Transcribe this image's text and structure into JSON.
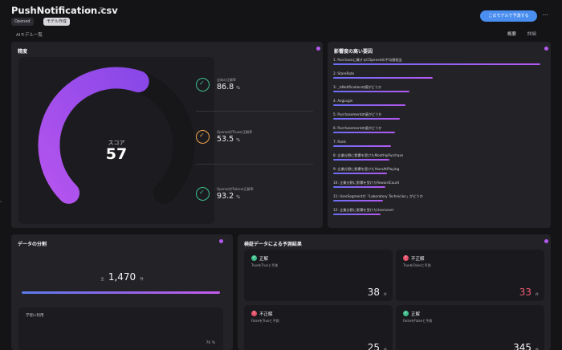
{
  "header": {
    "title": "PushNotification.csv",
    "title_icons": "☆ ⎘",
    "chips": [
      "Opened",
      "モデル作成"
    ],
    "model_button": "このモデルで予測する",
    "more": "⋯",
    "model_list_link": "AIモデル一覧",
    "tabs": [
      "概要",
      "詳細"
    ]
  },
  "accuracy": {
    "title": "精度",
    "score_label": "スコア",
    "score": "57",
    "score_fraction": 0.57,
    "metrics": [
      {
        "label": "全体の正解率",
        "value": "86.8",
        "unit": "%",
        "status": "ok"
      },
      {
        "label": "OpenedがTrueの正解率",
        "value": "53.5",
        "unit": "%",
        "status": "warn"
      },
      {
        "label": "OpenedがFalseの正解率",
        "value": "93.2",
        "unit": "%",
        "status": "ok"
      }
    ],
    "colors": {
      "arc_start": "#b454ee",
      "arc_end": "#8a48e8",
      "track": "#17171a"
    }
  },
  "importance": {
    "title": "影響度の高い要因",
    "items": [
      {
        "label": "1: Purchaseに属するCOpenedの平均値相当",
        "value": 1.0
      },
      {
        "label": "2: StoreRate",
        "value": 0.48
      },
      {
        "label": "3: _IsNotificationの値がどうか",
        "value": 0.37
      },
      {
        "label": "4: AvgLogin",
        "value": 0.35
      },
      {
        "label": "5: Purchasementの値がどうか",
        "value": 0.32
      },
      {
        "label": "6: Purchasementの値がどうか",
        "value": 0.3
      },
      {
        "label": "7: Rank",
        "value": 0.28
      },
      {
        "label": "8: 企業分野に影響を受けたMonthlyPurchase",
        "value": 0.27
      },
      {
        "label": "9: 企業分野に影響を受けたYearsAtPlaying",
        "value": 0.26
      },
      {
        "label": "10: 企業分野に影響を受けたRewardCount",
        "value": 0.25
      },
      {
        "label": "11: UserSegmentが「Laboratory Technician」がどうか",
        "value": 0.24
      },
      {
        "label": "12: 企業分野に影響を受けたUserLevel",
        "value": 0.23
      }
    ]
  },
  "distribution": {
    "title": "データの分割",
    "total_prefix": "全",
    "total": "1,470",
    "total_unit": "件",
    "train_fraction": 0.7,
    "box_label": "学習に利用",
    "box_percent": "70 %"
  },
  "prediction": {
    "title": "検証データによる予測結果",
    "cells": [
      {
        "title": "正解",
        "subtitle": "TrueをTrueと予測",
        "value": "38",
        "unit": "件",
        "status": "ok"
      },
      {
        "title": "不正解",
        "subtitle": "TrueをFalseと予測",
        "value": "33",
        "unit": "件",
        "status": "ng"
      },
      {
        "title": "不正解",
        "subtitle": "FalseをTrueと予測",
        "value": "25",
        "unit": "件",
        "status": "ng"
      },
      {
        "title": "正解",
        "subtitle": "FalseをFalseと予測",
        "value": "345",
        "unit": "件",
        "status": "ok"
      }
    ]
  },
  "left_rail": "‹"
}
